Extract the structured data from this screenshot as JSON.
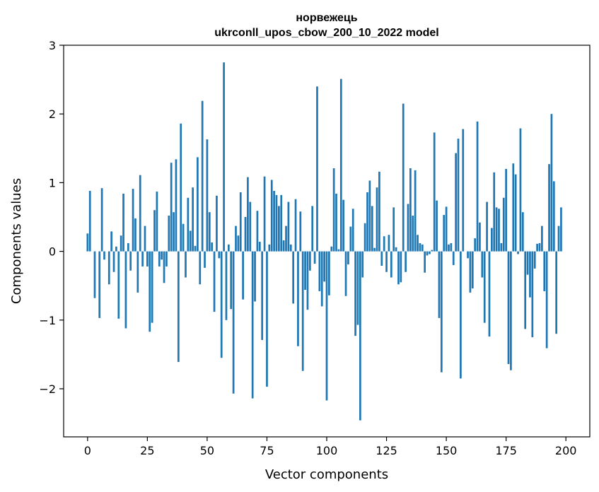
{
  "chart_data": {
    "type": "bar",
    "title": "норвежець",
    "subtitle": "ukrconll_upos_cbow_200_10_2022 model",
    "xlabel": "Vector components",
    "ylabel": "Components values",
    "xlim": [
      -10,
      210
    ],
    "ylim": [
      -2.7,
      3.0
    ],
    "xticks": [
      0,
      25,
      50,
      75,
      100,
      125,
      150,
      175,
      200
    ],
    "yticks": [
      -2,
      -1,
      0,
      1,
      2,
      3
    ],
    "ytick_labels": [
      "−2",
      "−1",
      "0",
      "1",
      "2",
      "3"
    ],
    "grid": false,
    "bar_color": "#1f77b4",
    "series": [
      {
        "name": "норвежець",
        "values": [
          0.26,
          0.88,
          0.0,
          -0.68,
          0.0,
          -0.97,
          0.92,
          -0.12,
          0.0,
          -0.48,
          0.29,
          -0.3,
          0.07,
          -0.98,
          0.23,
          0.84,
          -1.12,
          0.12,
          -0.28,
          0.91,
          0.48,
          -0.6,
          1.11,
          -0.22,
          0.37,
          -0.22,
          -1.17,
          -1.04,
          0.6,
          0.87,
          -0.22,
          -0.12,
          -0.46,
          -0.22,
          0.52,
          1.29,
          0.57,
          1.34,
          -1.61,
          1.86,
          0.4,
          -0.38,
          0.78,
          0.3,
          0.93,
          0.08,
          1.37,
          -0.48,
          2.19,
          -0.24,
          1.63,
          0.57,
          0.13,
          -0.88,
          0.81,
          -0.1,
          -1.55,
          2.75,
          -1.0,
          0.1,
          -0.84,
          -2.07,
          0.37,
          0.23,
          0.86,
          -0.7,
          0.5,
          1.08,
          0.72,
          -2.14,
          -0.73,
          0.59,
          0.14,
          -1.29,
          1.09,
          -1.97,
          0.1,
          1.04,
          0.88,
          0.82,
          0.66,
          0.82,
          0.16,
          0.37,
          0.72,
          0.1,
          -0.76,
          0.76,
          -1.38,
          0.58,
          -1.74,
          -0.56,
          -0.85,
          -0.28,
          0.66,
          -0.18,
          2.4,
          -0.58,
          -0.8,
          -0.44,
          -2.17,
          -0.64,
          0.07,
          1.21,
          0.84,
          0.03,
          2.51,
          0.75,
          -0.65,
          -0.19,
          0.36,
          0.62,
          -1.23,
          -1.07,
          -2.46,
          -0.38,
          0.41,
          0.86,
          1.03,
          0.66,
          0.05,
          0.93,
          1.16,
          -0.21,
          0.22,
          -0.3,
          0.24,
          -0.38,
          0.64,
          0.06,
          -0.48,
          -0.45,
          2.15,
          -0.3,
          0.69,
          1.21,
          0.52,
          1.18,
          0.24,
          0.12,
          0.1,
          -0.31,
          -0.06,
          -0.04,
          0.02,
          1.73,
          0.74,
          -0.97,
          -1.76,
          0.53,
          0.65,
          0.1,
          0.12,
          -0.2,
          1.43,
          1.64,
          -1.85,
          1.78,
          0.0,
          -0.1,
          -0.6,
          -0.54,
          0.19,
          1.89,
          0.42,
          -0.38,
          -1.04,
          0.72,
          -1.24,
          0.34,
          1.15,
          0.64,
          0.62,
          0.12,
          0.78,
          1.2,
          -1.64,
          -1.73,
          1.28,
          1.12,
          -0.04,
          1.79,
          0.57,
          -1.13,
          -0.34,
          -0.67,
          -1.25,
          -0.25,
          0.11,
          0.12,
          0.37,
          -0.58,
          -1.41,
          1.27,
          2.0,
          1.02,
          -1.2,
          0.37,
          0.64
        ]
      }
    ]
  }
}
